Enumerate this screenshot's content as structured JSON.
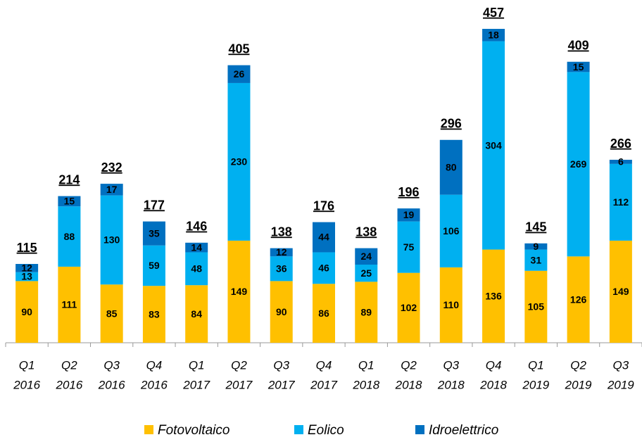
{
  "chart_data": {
    "type": "stacked-bar",
    "categories": [
      [
        "Q1",
        "2016"
      ],
      [
        "Q2",
        "2016"
      ],
      [
        "Q3",
        "2016"
      ],
      [
        "Q4",
        "2016"
      ],
      [
        "Q1",
        "2017"
      ],
      [
        "Q2",
        "2017"
      ],
      [
        "Q3",
        "2017"
      ],
      [
        "Q4",
        "2017"
      ],
      [
        "Q1",
        "2018"
      ],
      [
        "Q2",
        "2018"
      ],
      [
        "Q3",
        "2018"
      ],
      [
        "Q4",
        "2018"
      ],
      [
        "Q1",
        "2019"
      ],
      [
        "Q2",
        "2019"
      ],
      [
        "Q3",
        "2019"
      ]
    ],
    "series": [
      {
        "name": "Fotovoltaico",
        "color": "#ffc000",
        "values": [
          90,
          111,
          85,
          83,
          84,
          149,
          90,
          86,
          89,
          102,
          110,
          136,
          105,
          126,
          149
        ]
      },
      {
        "name": "Eolico",
        "color": "#00b0f0",
        "values": [
          13,
          88,
          130,
          59,
          48,
          230,
          36,
          46,
          25,
          75,
          106,
          304,
          31,
          269,
          112
        ]
      },
      {
        "name": "Idroelettrico",
        "color": "#0070c0",
        "values": [
          12,
          15,
          17,
          35,
          14,
          26,
          12,
          44,
          24,
          19,
          80,
          18,
          9,
          15,
          6
        ]
      }
    ],
    "totals": [
      115,
      214,
      232,
      177,
      146,
      405,
      138,
      176,
      138,
      196,
      296,
      457,
      145,
      409,
      266
    ],
    "legend": "bottom"
  }
}
